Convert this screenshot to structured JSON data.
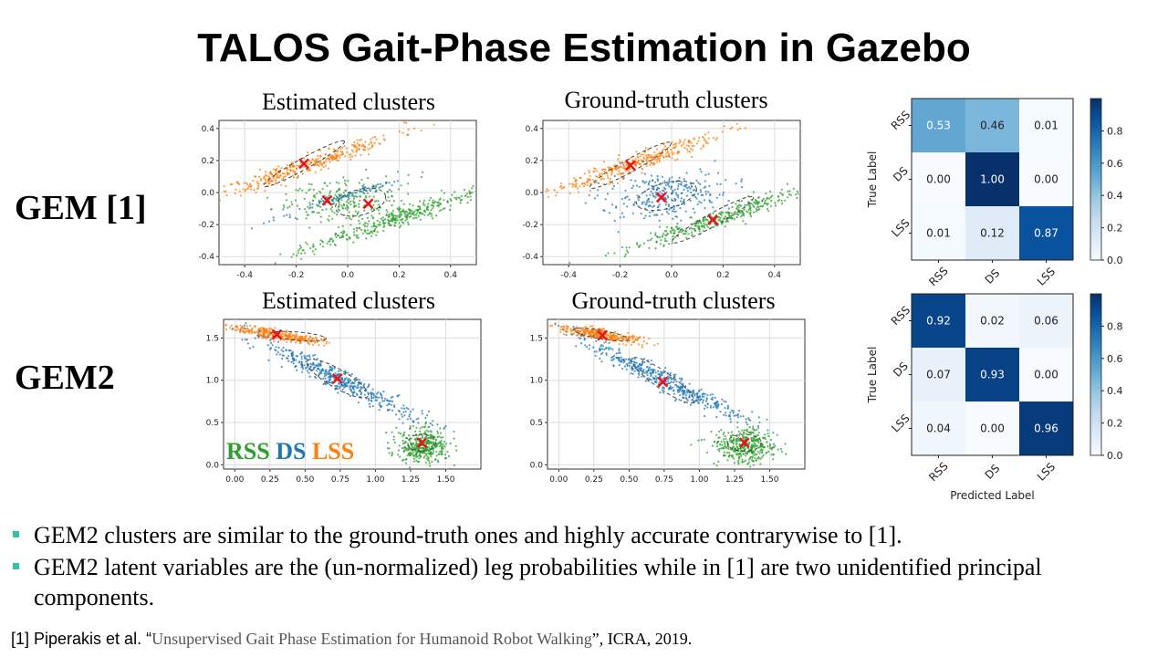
{
  "slide": {
    "title": "TALOS Gait-Phase Estimation in Gazebo",
    "row1_label": "GEM [1]",
    "row2_label": "GEM2",
    "bullets": [
      "GEM2 clusters are similar to the ground-truth ones and highly accurate contrarywise to [1].",
      "GEM2 latent variables are the (un-normalized) leg probabilities while in [1] are two unidentified principal components."
    ],
    "reference": {
      "prefix": "[1] Piperakis et al. “",
      "paper_title": "Unsupervised Gait Phase Estimation for Humanoid Robot Walking",
      "suffix": "”, ICRA, 2019."
    },
    "legend_overlay": {
      "rss": "RSS",
      "ds": "DS",
      "lss": "LSS"
    },
    "colors": {
      "rss": "#2ca02c",
      "ds": "#1f77b4",
      "lss": "#ff7f0e",
      "marker": "#e8141c",
      "bullet": "#2ec4a6"
    }
  },
  "chart_data": [
    {
      "type": "scatter",
      "title": "Estimated clusters",
      "xlim": [
        -0.5,
        0.5
      ],
      "ylim": [
        -0.45,
        0.45
      ],
      "x_ticks": [
        "-0.4",
        "-0.2",
        "0.0",
        "0.2",
        "0.4"
      ],
      "y_ticks": [
        "0.4",
        "0.2",
        "0.0",
        "-0.2",
        "-0.4"
      ],
      "grid": true,
      "clusters": [
        {
          "color": "lss",
          "cx": -0.16,
          "cy": 0.17,
          "sx": 0.2,
          "sy": 0.025,
          "angle": 29,
          "n": 350
        },
        {
          "color": "rss",
          "cx": 0.17,
          "cy": -0.17,
          "sx": 0.2,
          "sy": 0.025,
          "angle": 29,
          "n": 350
        },
        {
          "color": "rss",
          "cx": 0.0,
          "cy": -0.05,
          "sx": 0.12,
          "sy": 0.07,
          "angle": 10,
          "n": 250
        },
        {
          "color": "ds",
          "cx": -0.02,
          "cy": -0.03,
          "sx": 0.15,
          "sy": 0.01,
          "angle": 27,
          "n": 80
        }
      ],
      "markers": [
        {
          "x": -0.17,
          "y": 0.18
        },
        {
          "x": -0.08,
          "y": -0.05
        },
        {
          "x": 0.08,
          "y": -0.07
        }
      ],
      "ellipses": [
        {
          "cx": -0.17,
          "cy": 0.18,
          "rx": 0.18,
          "ry": 0.035,
          "angle": 29
        },
        {
          "cx": 0.05,
          "cy": -0.06,
          "rx": 0.1,
          "ry": 0.08,
          "angle": 15
        }
      ]
    },
    {
      "type": "scatter",
      "title": "Ground-truth clusters",
      "xlim": [
        -0.5,
        0.5
      ],
      "ylim": [
        -0.45,
        0.45
      ],
      "x_ticks": [
        "-0.4",
        "-0.2",
        "0.0",
        "0.2",
        "0.4"
      ],
      "y_ticks": [
        "0.4",
        "0.2",
        "0.0",
        "-0.2",
        "-0.4"
      ],
      "grid": true,
      "clusters": [
        {
          "color": "lss",
          "cx": -0.16,
          "cy": 0.17,
          "sx": 0.2,
          "sy": 0.025,
          "angle": 29,
          "n": 350
        },
        {
          "color": "rss",
          "cx": 0.17,
          "cy": -0.17,
          "sx": 0.2,
          "sy": 0.025,
          "angle": 29,
          "n": 350
        },
        {
          "color": "ds",
          "cx": -0.02,
          "cy": -0.02,
          "sx": 0.12,
          "sy": 0.07,
          "angle": 10,
          "n": 280
        }
      ],
      "markers": [
        {
          "x": -0.16,
          "y": 0.17
        },
        {
          "x": -0.04,
          "y": -0.03
        },
        {
          "x": 0.16,
          "y": -0.17
        }
      ],
      "ellipses": [
        {
          "cx": -0.16,
          "cy": 0.17,
          "rx": 0.18,
          "ry": 0.04,
          "angle": 29
        },
        {
          "cx": -0.02,
          "cy": -0.02,
          "rx": 0.12,
          "ry": 0.08,
          "angle": 15
        },
        {
          "cx": 0.16,
          "cy": -0.17,
          "rx": 0.18,
          "ry": 0.04,
          "angle": 29
        }
      ]
    },
    {
      "type": "heatmap",
      "title": "",
      "xlabel": "",
      "ylabel": "True Label",
      "row_labels": [
        "RSS",
        "DS",
        "LSS"
      ],
      "col_labels": [
        "RSS",
        "DS",
        "LSS"
      ],
      "values": [
        [
          0.53,
          0.46,
          0.01
        ],
        [
          0.0,
          1.0,
          0.0
        ],
        [
          0.01,
          0.12,
          0.87
        ]
      ],
      "display": [
        [
          "0.53",
          "0.46",
          "0.01"
        ],
        [
          "0.00",
          "1.00",
          "0.00"
        ],
        [
          "0.01",
          "0.12",
          "0.87"
        ]
      ],
      "colorbar_ticks": [
        "0.8",
        "0.6",
        "0.4",
        "0.2",
        "0.0"
      ]
    },
    {
      "type": "scatter",
      "title": "Estimated clusters",
      "xlim": [
        -0.08,
        1.75
      ],
      "ylim": [
        -0.05,
        1.72
      ],
      "x_ticks": [
        "0.00",
        "0.25",
        "0.50",
        "0.75",
        "1.00",
        "1.25",
        "1.50"
      ],
      "y_ticks": [
        "1.5",
        "1.0",
        "0.5",
        "0.0"
      ],
      "grid": true,
      "clusters": [
        {
          "color": "lss",
          "cx": 0.3,
          "cy": 1.54,
          "sx": 0.16,
          "sy": 0.03,
          "angle": -15,
          "n": 320
        },
        {
          "color": "ds",
          "cx": 0.75,
          "cy": 1.0,
          "sx": 0.38,
          "sy": 0.05,
          "angle": -40,
          "n": 450
        },
        {
          "color": "rss",
          "cx": 1.33,
          "cy": 0.22,
          "sx": 0.09,
          "sy": 0.1,
          "angle": 0,
          "n": 380
        }
      ],
      "markers": [
        {
          "x": 0.3,
          "y": 1.54
        },
        {
          "x": 0.73,
          "y": 1.02
        },
        {
          "x": 1.33,
          "y": 0.26
        }
      ],
      "ellipses": [
        {
          "cx": 0.45,
          "cy": 1.52,
          "rx": 0.2,
          "ry": 0.05,
          "angle": -5
        },
        {
          "cx": 0.73,
          "cy": 1.02,
          "rx": 0.25,
          "ry": 0.11,
          "angle": -30
        },
        {
          "cx": 1.33,
          "cy": 0.26,
          "rx": 0.1,
          "ry": 0.1,
          "angle": 0
        }
      ]
    },
    {
      "type": "scatter",
      "title": "Ground-truth clusters",
      "xlim": [
        -0.08,
        1.75
      ],
      "ylim": [
        -0.05,
        1.72
      ],
      "x_ticks": [
        "0.00",
        "0.25",
        "0.50",
        "0.75",
        "1.00",
        "1.25",
        "1.50"
      ],
      "y_ticks": [
        "1.5",
        "1.0",
        "0.5",
        "0.0"
      ],
      "grid": true,
      "clusters": [
        {
          "color": "lss",
          "cx": 0.3,
          "cy": 1.54,
          "sx": 0.16,
          "sy": 0.03,
          "angle": -15,
          "n": 320
        },
        {
          "color": "ds",
          "cx": 0.75,
          "cy": 1.0,
          "sx": 0.38,
          "sy": 0.05,
          "angle": -40,
          "n": 450
        },
        {
          "color": "rss",
          "cx": 1.32,
          "cy": 0.22,
          "sx": 0.1,
          "sy": 0.1,
          "angle": 0,
          "n": 380
        }
      ],
      "markers": [
        {
          "x": 0.31,
          "y": 1.53
        },
        {
          "x": 0.74,
          "y": 0.98
        },
        {
          "x": 1.32,
          "y": 0.26
        }
      ],
      "ellipses": [
        {
          "cx": 0.3,
          "cy": 1.54,
          "rx": 0.2,
          "ry": 0.05,
          "angle": -10
        },
        {
          "cx": 0.74,
          "cy": 1.0,
          "rx": 0.27,
          "ry": 0.1,
          "angle": -35
        },
        {
          "cx": 1.32,
          "cy": 0.26,
          "rx": 0.12,
          "ry": 0.1,
          "angle": 0
        }
      ]
    },
    {
      "type": "heatmap",
      "title": "",
      "xlabel": "Predicted Label",
      "ylabel": "True Label",
      "row_labels": [
        "RSS",
        "DS",
        "LSS"
      ],
      "col_labels": [
        "RSS",
        "DS",
        "LSS"
      ],
      "values": [
        [
          0.92,
          0.02,
          0.06
        ],
        [
          0.07,
          0.93,
          0.0
        ],
        [
          0.04,
          0.0,
          0.96
        ]
      ],
      "display": [
        [
          "0.92",
          "0.02",
          "0.06"
        ],
        [
          "0.07",
          "0.93",
          "0.00"
        ],
        [
          "0.04",
          "0.00",
          "0.96"
        ]
      ],
      "colorbar_ticks": [
        "0.8",
        "0.6",
        "0.4",
        "0.2",
        "0.0"
      ]
    }
  ]
}
